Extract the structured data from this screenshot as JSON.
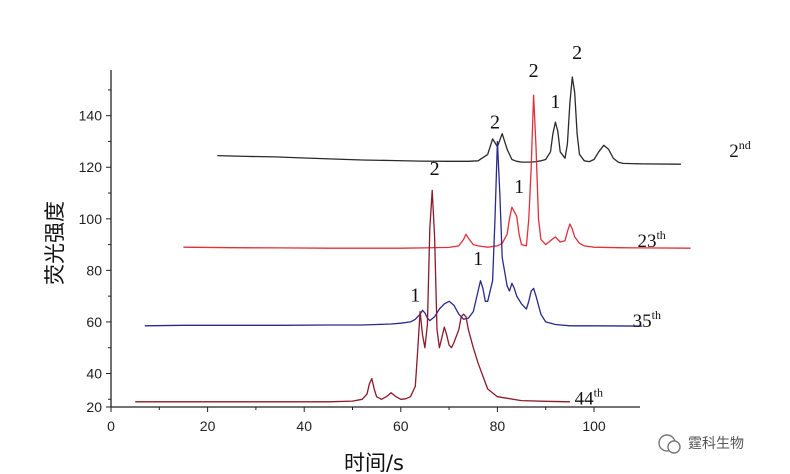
{
  "chart_data": {
    "type": "line",
    "xlabel": "时间/s",
    "ylabel": "荧光强度",
    "xlim": [
      0,
      110
    ],
    "ylim": [
      25,
      150
    ],
    "xticks": [
      0,
      20,
      40,
      60,
      80,
      100
    ],
    "yticks": [
      20,
      40,
      60,
      80,
      100,
      120,
      140
    ],
    "grid": false,
    "series": [
      {
        "name": "2",
        "sup": "nd",
        "color": "#2a2a2a",
        "label_at": [
          128,
          124
        ],
        "x": [
          22,
          28,
          34,
          40,
          46,
          52,
          58,
          64,
          70,
          74,
          76,
          78,
          79,
          80,
          81,
          82,
          83,
          84,
          85,
          86,
          87,
          88,
          89,
          90,
          91,
          91.5,
          92,
          92.5,
          93,
          94,
          94.5,
          95,
          95.5,
          96,
          96.5,
          97,
          98,
          99,
          100,
          101,
          102,
          103,
          104,
          105,
          106,
          110,
          118
        ],
        "y": [
          124.5,
          124.2,
          124,
          123.6,
          123.2,
          122.8,
          122.6,
          122.4,
          122.3,
          122.3,
          122.5,
          125,
          131,
          128,
          133,
          127,
          123,
          122.3,
          122,
          122,
          122,
          122.2,
          122.5,
          123,
          126,
          133,
          137.5,
          134,
          126,
          123.5,
          129,
          145,
          155,
          149,
          133,
          125,
          122.5,
          122.2,
          123,
          126,
          128.5,
          127,
          123.5,
          122,
          121.5,
          121.3,
          121.2
        ]
      },
      {
        "name": "23",
        "sup": "th",
        "color": "#e0303a",
        "label_at": [
          109,
          89
        ],
        "x": [
          15,
          25,
          35,
          45,
          55,
          60,
          65,
          70,
          72,
          73,
          73.5,
          74,
          75,
          76,
          78,
          80,
          81,
          82,
          82.5,
          83,
          84,
          84.5,
          85,
          86,
          86.5,
          87,
          87.5,
          88,
          88.5,
          89,
          90,
          91,
          92,
          93,
          94,
          94.5,
          95,
          95.5,
          96,
          97,
          98,
          100,
          105,
          110,
          120
        ],
        "y": [
          89,
          88.8,
          88.7,
          88.6,
          88.6,
          88.6,
          88.7,
          88.9,
          89.5,
          92,
          94,
          92.5,
          90,
          89.5,
          89,
          89.5,
          90.5,
          94,
          100,
          104.5,
          101,
          94,
          90,
          89.5,
          100,
          120,
          148,
          128,
          100,
          92,
          90,
          91.5,
          93,
          91,
          91.5,
          95,
          98,
          96,
          93,
          90.5,
          89.5,
          89,
          88.8,
          88.7,
          88.6
        ]
      },
      {
        "name": "35",
        "sup": "th",
        "color": "#2a2a8a",
        "label_at": [
          108,
          58
        ],
        "x": [
          7,
          15,
          25,
          35,
          45,
          52,
          55,
          58,
          60,
          62,
          63,
          64,
          64.5,
          65,
          65.5,
          66,
          67,
          68,
          69,
          70,
          71,
          72,
          73,
          74,
          75,
          76,
          76.5,
          77,
          77.5,
          78,
          79,
          79.5,
          80,
          80.5,
          81,
          82,
          82.5,
          83,
          83.5,
          84,
          85,
          86,
          86.5,
          87,
          87.5,
          88,
          89,
          90,
          92,
          95,
          100,
          110
        ],
        "y": [
          58.5,
          58.7,
          58.7,
          58.7,
          58.8,
          58.8,
          59,
          59.2,
          59.5,
          60,
          61,
          63,
          64.5,
          63.5,
          61.5,
          60.5,
          62,
          65,
          67,
          68,
          66.5,
          63,
          61,
          61.5,
          64,
          72,
          76,
          73,
          68,
          68,
          76,
          100,
          130,
          110,
          85,
          74,
          72,
          75,
          73,
          70,
          67,
          65,
          68,
          72,
          73,
          70,
          63,
          60,
          59,
          58.5,
          58.5,
          58.4
        ]
      },
      {
        "name": "44",
        "sup": "th",
        "color": "#8b1a2a",
        "label_at": [
          96,
          28
        ],
        "x": [
          5,
          15,
          25,
          35,
          45,
          50,
          52,
          53,
          53.5,
          54,
          54.5,
          55,
          56,
          57,
          58,
          59,
          60,
          61,
          62,
          63,
          63.5,
          64,
          64.5,
          65,
          65.5,
          66,
          66.5,
          67,
          67.5,
          68,
          68.5,
          69,
          69.5,
          70,
          70.5,
          71,
          72,
          72.5,
          73,
          73.5,
          74,
          75,
          76,
          78,
          80,
          85,
          90,
          95
        ],
        "y": [
          29,
          29,
          29,
          29,
          29,
          29.3,
          30,
          32,
          36,
          38,
          34,
          31,
          30,
          31,
          32.5,
          31,
          30,
          30.2,
          31,
          35,
          49,
          64,
          55,
          50,
          59,
          96,
          111,
          93,
          57,
          50,
          54,
          58,
          55,
          51,
          50,
          52,
          57,
          62,
          63,
          62,
          57,
          50,
          44,
          34,
          31,
          29.5,
          29.2,
          29
        ]
      }
    ],
    "annotations": [
      {
        "text": "2",
        "x": 96.5,
        "y": 162
      },
      {
        "text": "1",
        "x": 92,
        "y": 143
      },
      {
        "text": "2",
        "x": 87.5,
        "y": 155
      },
      {
        "text": "2",
        "x": 79.5,
        "y": 135
      },
      {
        "text": "1",
        "x": 84.5,
        "y": 110
      },
      {
        "text": "1",
        "x": 76,
        "y": 82
      },
      {
        "text": "2",
        "x": 67,
        "y": 117
      },
      {
        "text": "1",
        "x": 63,
        "y": 68
      }
    ]
  },
  "watermark": {
    "text": "霆科生物"
  }
}
